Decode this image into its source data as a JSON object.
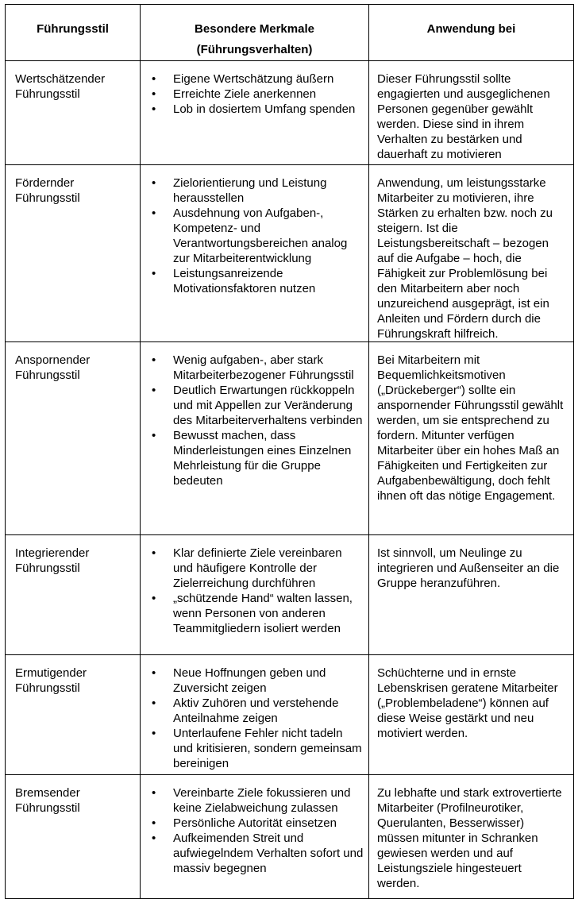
{
  "headers": [
    "Führungsstil",
    "Besondere Merkmale (Führungsverhalten)",
    "Anwendung bei"
  ],
  "rows": [
    {
      "style": "Wertschätzender Führungsstil",
      "features": [
        "Eigene Wertschätzung äußern",
        "Erreichte Ziele anerkennen",
        "Lob in dosiertem Umfang spenden"
      ],
      "application": "Dieser Führungsstil sollte engagierten und ausgeglichenen Personen gegenüber gewählt werden. Diese sind in ihrem Verhalten zu bestärken und dauerhaft zu motivieren"
    },
    {
      "style": "Fördernder Führungsstil",
      "features": [
        "Zielorientierung und Leistung herausstellen",
        "Ausdehnung von Aufgaben-, Kompetenz- und Verantwortungsbereichen analog zur Mitarbeiterentwicklung",
        "Leistungsanreizende Motivationsfaktoren nutzen"
      ],
      "application": "Anwendung, um leistungsstarke Mitarbeiter zu motivieren, ihre Stärken zu erhalten bzw. noch zu steigern. Ist die Leistungsbereitschaft – bezogen auf die Aufgabe – hoch, die Fähigkeit zur Problemlösung bei den Mitarbeitern aber noch unzureichend ausgeprägt, ist ein Anleiten und Fördern durch die Führungskraft hilfreich."
    },
    {
      "style": "Anspornender Führungsstil",
      "features": [
        "Wenig aufgaben-, aber stark Mitarbeiterbezogener Führungsstil",
        "Deutlich Erwartungen rückkoppeln und mit Appellen zur Veränderung des Mitarbeiterverhaltens verbinden",
        "Bewusst machen, dass Minderleistungen eines Einzelnen Mehrleistung für die Gruppe bedeuten"
      ],
      "application": "Bei Mitarbeitern mit Bequemlichkeitsmotiven („Drückeberger“) sollte ein anspornender Führungsstil gewählt werden, um sie entsprechend zu fordern. Mitunter verfügen Mitarbeiter über ein hohes Maß an Fähigkeiten und Fertigkeiten zur Aufgabenbewältigung, doch fehlt ihnen oft das nötige Engagement."
    },
    {
      "style": "Integrierender Führungsstil",
      "features": [
        "Klar definierte Ziele vereinbaren und häufigere Kontrolle der Zielerreichung durchführen",
        "„schützende Hand“ walten lassen, wenn Personen von anderen Teammitgliedern isoliert werden"
      ],
      "application": "Ist sinnvoll, um Neulinge zu integrieren und Außenseiter an die Gruppe heranzuführen."
    },
    {
      "style": "Ermutigender Führungsstil",
      "features": [
        "Neue Hoffnungen geben und Zuversicht zeigen",
        "Aktiv Zuhören und verstehende Anteilnahme zeigen",
        "Unterlaufene Fehler nicht tadeln und kritisieren, sondern gemeinsam bereinigen"
      ],
      "application": "Schüchterne und in ernste Lebenskrisen geratene Mitarbeiter („Problembeladene“) können auf diese Weise gestärkt und neu motiviert werden."
    },
    {
      "style": "Bremsender Führungsstil",
      "features": [
        "Vereinbarte Ziele fokussieren und keine Zielabweichung zulassen",
        "Persönliche Autorität einsetzen",
        "Aufkeimenden Streit und aufwiegelndem Verhalten sofort und massiv begegnen"
      ],
      "application": "Zu lebhafte und stark extrovertierte Mitarbeiter (Profilneurotiker, Querulanten, Besserwisser) müssen mitunter in Schranken gewiesen werden und auf Leistungsziele hingesteuert werden."
    }
  ]
}
